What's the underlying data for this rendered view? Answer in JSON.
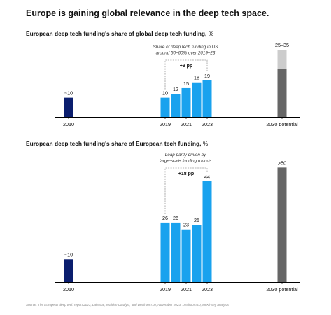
{
  "title": "Europe is gaining global relevance in the deep tech space.",
  "colors": {
    "dark_navy": "#0b1e6e",
    "bright_blue": "#19a2ee",
    "dark_gray": "#666666",
    "light_gray": "#cccccc",
    "axis": "#000000",
    "bracket": "#9a9a9a",
    "source_text": "#888888"
  },
  "source": "Source: The European deep tech report 2023, Lakestar, Walden Catalyst, and Dealroom.co, November 2023; Dealroom.co; McKinsey analysis",
  "chart_data": [
    {
      "type": "bar",
      "title": "European deep tech funding's share of global deep tech funding,",
      "unit": "%",
      "xlabel": "",
      "ylabel": "",
      "ylim": [
        0,
        38
      ],
      "categories": [
        "2010",
        "2019",
        "2020",
        "2021",
        "2022",
        "2023",
        "2030 potential"
      ],
      "x_tick_labels": [
        "2010",
        "2019",
        "2021",
        "2023",
        "2030 potential"
      ],
      "bars": [
        {
          "category": "2010",
          "value": 10,
          "label": "~10",
          "style": "dark_navy"
        },
        {
          "category": "2019",
          "value": 10,
          "label": "10",
          "style": "bright_blue"
        },
        {
          "category": "2020",
          "value": 12,
          "label": "12",
          "style": "bright_blue"
        },
        {
          "category": "2021",
          "value": 15,
          "label": "15",
          "style": "bright_blue"
        },
        {
          "category": "2022",
          "value": 18,
          "label": "18",
          "style": "bright_blue"
        },
        {
          "category": "2023",
          "value": 19,
          "label": "19",
          "style": "bright_blue"
        },
        {
          "category": "2030 potential",
          "value": 25,
          "value_high": 35,
          "label": "25–35",
          "style": "range"
        }
      ],
      "annotation": "Share of deep tech funding in US around 50–60% over 2019–23",
      "bracket_label": "+9 pp",
      "bracket_from": "2019",
      "bracket_to": "2023"
    },
    {
      "type": "bar",
      "title": "European deep tech funding's share of European tech funding,",
      "unit": "%",
      "xlabel": "",
      "ylabel": "",
      "ylim": [
        0,
        55
      ],
      "categories": [
        "2010",
        "2019",
        "2020",
        "2021",
        "2022",
        "2023",
        "2030 potential"
      ],
      "x_tick_labels": [
        "2010",
        "2019",
        "2021",
        "2023",
        "2030 potential"
      ],
      "bars": [
        {
          "category": "2010",
          "value": 10,
          "label": "~10",
          "style": "dark_navy"
        },
        {
          "category": "2019",
          "value": 26,
          "label": "26",
          "style": "bright_blue"
        },
        {
          "category": "2020",
          "value": 26,
          "label": "26",
          "style": "bright_blue"
        },
        {
          "category": "2021",
          "value": 23,
          "label": "23",
          "style": "bright_blue"
        },
        {
          "category": "2022",
          "value": 25,
          "label": "25",
          "style": "bright_blue"
        },
        {
          "category": "2023",
          "value": 44,
          "label": "44",
          "style": "bright_blue"
        },
        {
          "category": "2030 potential",
          "value": 50,
          "label": ">50",
          "style": "dark_gray"
        }
      ],
      "annotation": "Leap partly driven by large-scale funding rounds",
      "bracket_label": "+18 pp",
      "bracket_from": "2019",
      "bracket_to": "2023"
    }
  ]
}
